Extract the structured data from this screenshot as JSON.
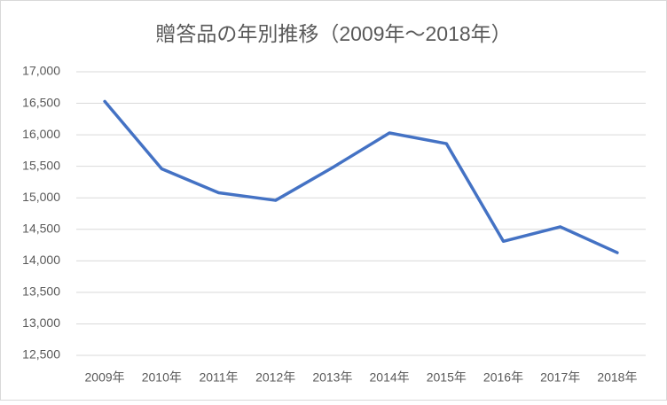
{
  "chart_data": {
    "type": "line",
    "title": "贈答品の年別推移（2009年～2018年）",
    "categories": [
      "2009年",
      "2010年",
      "2011年",
      "2012年",
      "2013年",
      "2014年",
      "2015年",
      "2016年",
      "2017年",
      "2018年"
    ],
    "series": [
      {
        "name": "贈答品",
        "color": "#4472c4",
        "values": [
          16530,
          15460,
          15080,
          14960,
          15480,
          16030,
          15860,
          14310,
          14540,
          14130
        ]
      }
    ],
    "ylim": [
      12500,
      17000
    ],
    "yticks": [
      {
        "value": 12500,
        "label": "12,500"
      },
      {
        "value": 13000,
        "label": "13,000"
      },
      {
        "value": 13500,
        "label": "13,500"
      },
      {
        "value": 14000,
        "label": "14,000"
      },
      {
        "value": 14500,
        "label": "14,500"
      },
      {
        "value": 15000,
        "label": "15,000"
      },
      {
        "value": 15500,
        "label": "15,500"
      },
      {
        "value": 16000,
        "label": "16,000"
      },
      {
        "value": 16500,
        "label": "16,500"
      },
      {
        "value": 17000,
        "label": "17,000"
      }
    ],
    "grid": true
  }
}
